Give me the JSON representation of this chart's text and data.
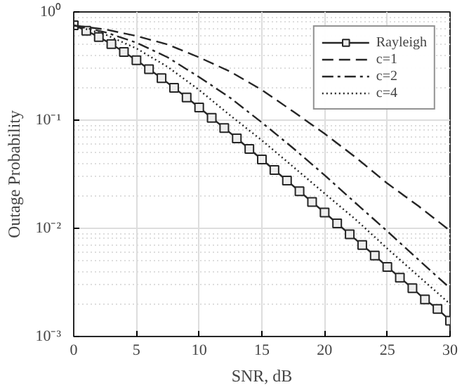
{
  "chart_data": {
    "type": "line",
    "xlabel": "SNR, dB",
    "ylabel": "Outage Probability",
    "log": "y",
    "grid": true,
    "legend": "top right",
    "xlim": [
      0,
      30
    ],
    "xticks": [
      0,
      5,
      10,
      15,
      20,
      25,
      30
    ],
    "ylim": [
      0.001,
      1
    ],
    "yticks": [
      {
        "value": 0.001,
        "label": "10⁻³"
      },
      {
        "value": 0.01,
        "label": "10⁻²"
      },
      {
        "value": 0.1,
        "label": "10⁻¹"
      },
      {
        "value": 1,
        "label": "10⁰"
      }
    ],
    "series": [
      {
        "name": "Rayleigh",
        "color": "#262626",
        "marker": "square",
        "line_style": "solid",
        "x": [
          0,
          1,
          2,
          3,
          4,
          5,
          6,
          7,
          8,
          9,
          10,
          11,
          12,
          13,
          14,
          15,
          16,
          17,
          18,
          19,
          20,
          21,
          22,
          23,
          24,
          25,
          26,
          27,
          28,
          29,
          30
        ],
        "values": [
          0.753,
          0.671,
          0.587,
          0.504,
          0.427,
          0.358,
          0.296,
          0.244,
          0.199,
          0.162,
          0.131,
          0.105,
          0.0846,
          0.0678,
          0.0542,
          0.0433,
          0.0346,
          0.0276,
          0.022,
          0.0175,
          0.014,
          0.0111,
          0.0088,
          0.007,
          0.0056,
          0.0044,
          0.0035,
          0.0028,
          0.0022,
          0.0018,
          0.0014
        ]
      },
      {
        "name": "c=1",
        "color": "#262626",
        "marker": "none",
        "line_style": "dashed",
        "x": [
          0,
          2.5,
          5,
          7.5,
          10,
          12.5,
          15,
          17.5,
          20,
          22.5,
          25,
          27.5,
          30
        ],
        "values": [
          0.75,
          0.69,
          0.6,
          0.5,
          0.38,
          0.28,
          0.19,
          0.12,
          0.075,
          0.045,
          0.026,
          0.016,
          0.0095
        ]
      },
      {
        "name": "c=2",
        "color": "#262626",
        "marker": "none",
        "line_style": "dashdot",
        "x": [
          0,
          2.5,
          5,
          7.5,
          10,
          12.5,
          15,
          17.5,
          20,
          22.5,
          25,
          27.5,
          30
        ],
        "values": [
          0.75,
          0.65,
          0.52,
          0.38,
          0.25,
          0.16,
          0.095,
          0.055,
          0.031,
          0.017,
          0.0094,
          0.0051,
          0.0028
        ]
      },
      {
        "name": "c=4",
        "color": "#262626",
        "marker": "none",
        "line_style": "dotted",
        "x": [
          0,
          2.5,
          5,
          7.5,
          10,
          12.5,
          15,
          17.5,
          20,
          22.5,
          25,
          27.5,
          30
        ],
        "values": [
          0.75,
          0.62,
          0.46,
          0.31,
          0.19,
          0.11,
          0.065,
          0.037,
          0.021,
          0.012,
          0.0065,
          0.0036,
          0.002
        ]
      }
    ]
  }
}
